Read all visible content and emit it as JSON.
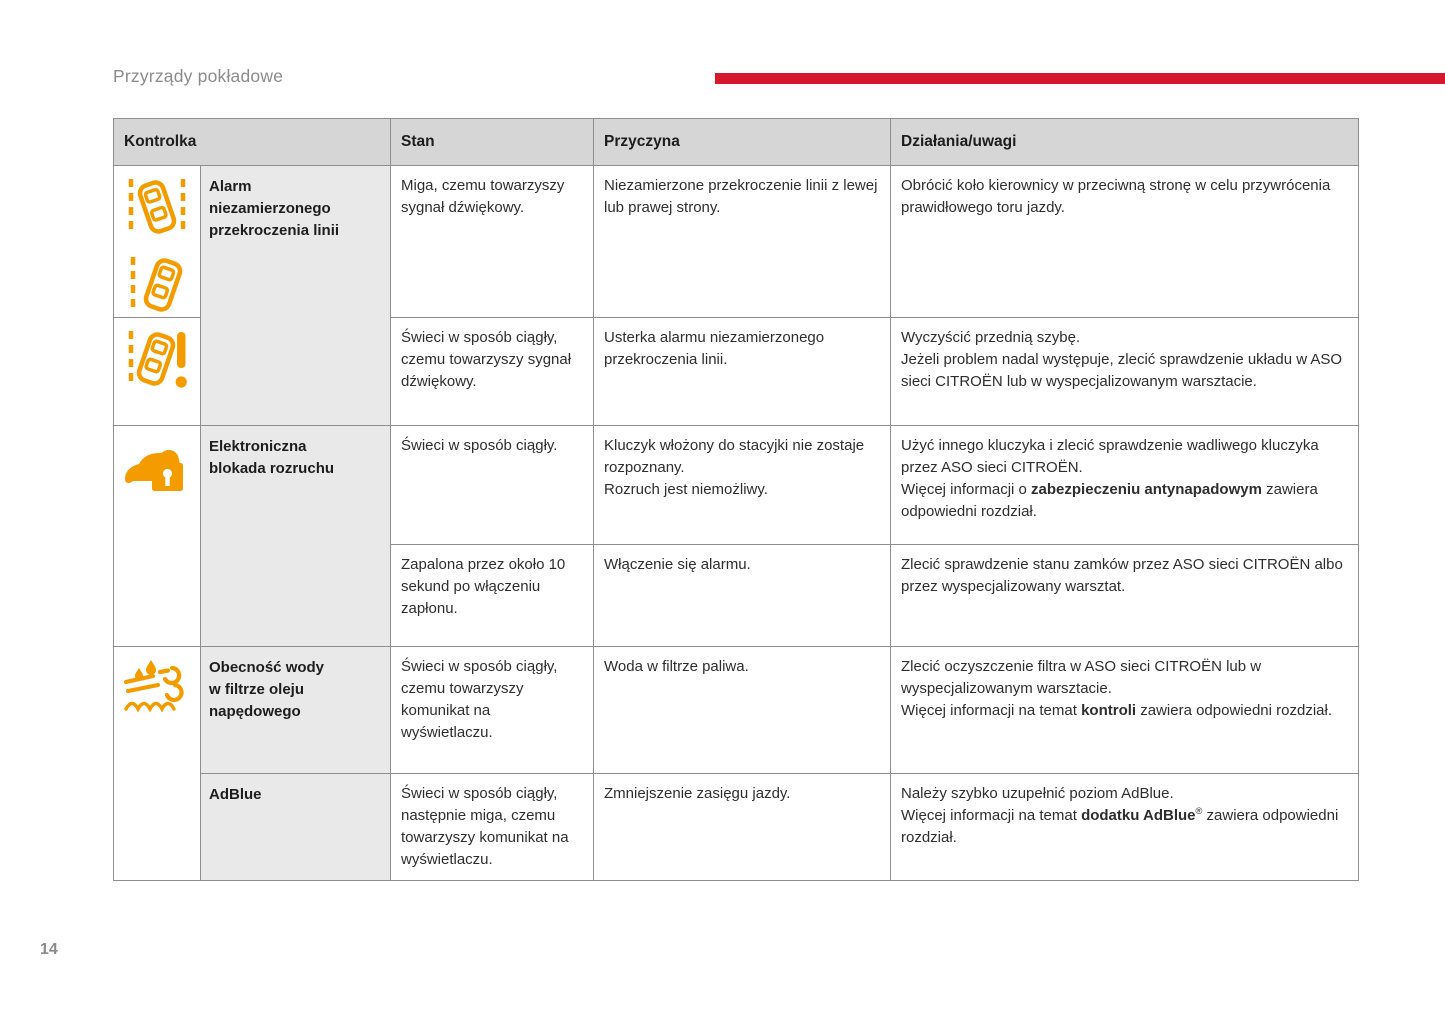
{
  "page": {
    "title": "Przyrządy pokładowe",
    "page_number": "14"
  },
  "colors": {
    "accent_red": "#d6182f",
    "icon_orange": "#f49b00"
  },
  "table": {
    "headers": {
      "kontrolka": "Kontrolka",
      "stan": "Stan",
      "przyczyna": "Przyczyna",
      "dzialania": "Działania/uwagi"
    },
    "groups": [
      {
        "name": "Alarm\nniezamierzonego\nprzekroczenia linii",
        "icons": [
          "lane-departure-left-warning",
          "lane-departure-right-warning",
          "lane-departure-fault-warning"
        ],
        "rows": [
          {
            "stan": "Miga, czemu towarzyszy sygnał dźwiękowy.",
            "przyczyna": "Niezamierzone przekroczenie linii z lewej lub prawej strony.",
            "dzialania": [
              {
                "t": "Obrócić koło kierownicy w przeciwną stronę w celu przywrócenia prawidłowego toru jazdy."
              }
            ]
          },
          {
            "stan": "Świeci w sposób ciągły, czemu towarzyszy sygnał dźwiękowy.",
            "przyczyna": "Usterka alarmu niezamierzonego przekroczenia linii.",
            "dzialania": [
              {
                "t": "Wyczyścić przednią szybę.\nJeżeli problem nadal występuje, zlecić sprawdzenie układu w ASO sieci CITROËN lub w wyspecjalizowanym warsztacie."
              }
            ]
          }
        ]
      },
      {
        "name": "Elektroniczna\nblokada rozruchu",
        "icons": [
          "engine-immobiliser-warning"
        ],
        "rows": [
          {
            "stan": "Świeci w sposób ciągły.",
            "przyczyna": "Kluczyk włożony do stacyjki nie zostaje rozpoznany.\nRozruch jest niemożliwy.",
            "dzialania": [
              {
                "t": "Użyć innego kluczyka i zlecić sprawdzenie wadliwego kluczyka przez ASO sieci CITROËN.\nWięcej informacji o "
              },
              {
                "t": "zabezpieczeniu antynapadowym",
                "b": true
              },
              {
                "t": " zawiera odpowiedni rozdział."
              }
            ]
          },
          {
            "stan": "Zapalona przez około 10 sekund po włączeniu zapłonu.",
            "przyczyna": "Włączenie się alarmu.",
            "dzialania": [
              {
                "t": "Zlecić sprawdzenie stanu zamków przez ASO sieci CITROËN albo przez wyspecjalizowany warsztat."
              }
            ]
          }
        ]
      },
      {
        "name": "Obecność wody\nw filtrze oleju\nnapędowego",
        "icons": [
          "water-in-diesel-filter-warning"
        ],
        "rows": [
          {
            "stan": "Świeci w sposób ciągły, czemu towarzyszy komunikat na wyświetlaczu.",
            "przyczyna": "Woda w filtrze paliwa.",
            "dzialania": [
              {
                "t": "Zlecić oczyszczenie filtra w ASO sieci CITROËN lub w wyspecjalizowanym warsztacie.\nWięcej informacji na temat "
              },
              {
                "t": "kontroli",
                "b": true
              },
              {
                "t": " zawiera odpowiedni rozdział."
              }
            ]
          }
        ]
      },
      {
        "name": "AdBlue",
        "icons": [],
        "rows": [
          {
            "stan": "Świeci w sposób ciągły, następnie miga, czemu towarzyszy komunikat na wyświetlaczu.",
            "przyczyna": "Zmniejszenie zasięgu jazdy.",
            "dzialania": [
              {
                "t": "Należy szybko uzupełnić poziom AdBlue.\nWięcej informacji na temat "
              },
              {
                "t": "dodatku AdBlue",
                "b": true
              },
              {
                "t": "®",
                "sup": true
              },
              {
                "t": " zawiera odpowiedni rozdział."
              }
            ]
          }
        ]
      }
    ]
  }
}
